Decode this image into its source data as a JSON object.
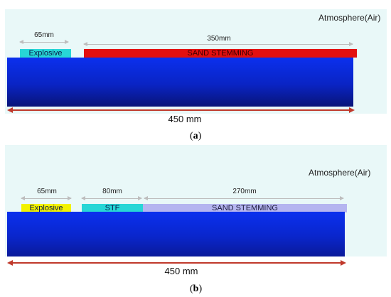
{
  "panel_a": {
    "atmosphere_label": "Atmosphere(Air)",
    "explosive_dim": "65mm",
    "stemming_dim": "350mm",
    "explosive_label": "Explosive",
    "stemming_label": "SAND STEMMING",
    "total_dim": "450 mm",
    "caption_open": "(",
    "caption_letter": "a",
    "caption_close": ")"
  },
  "panel_b": {
    "atmosphere_label": "Atmosphere(Air)",
    "explosive_dim": "65mm",
    "stf_dim": "80mm",
    "stemming_dim": "270mm",
    "explosive_label": "Explosive",
    "stf_label": "STF",
    "stemming_label": "SAND STEMMING",
    "total_dim": "450 mm",
    "caption_open": "(",
    "caption_letter": "b",
    "caption_close": ")"
  },
  "colors": {
    "atmosphere": "#e9f8f8",
    "explosive_a": "#27d6d6",
    "sand_stemming_a": "#e31010",
    "explosive_b": "#f2f200",
    "stf": "#27d6d6",
    "sand_stemming_b": "#b5b5f0",
    "rock_body": "#0b30ee",
    "dimension_arrow": "#c0392b"
  }
}
